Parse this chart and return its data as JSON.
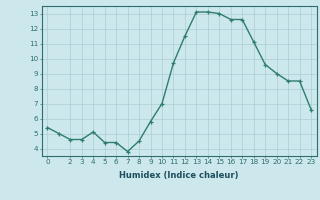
{
  "x": [
    0,
    1,
    2,
    3,
    4,
    5,
    6,
    7,
    8,
    9,
    10,
    11,
    12,
    13,
    14,
    15,
    16,
    17,
    18,
    19,
    20,
    21,
    22,
    23
  ],
  "y": [
    5.4,
    5.0,
    4.6,
    4.6,
    5.1,
    4.4,
    4.4,
    3.8,
    4.5,
    5.8,
    7.0,
    9.7,
    11.5,
    13.1,
    13.1,
    13.0,
    12.6,
    12.6,
    11.1,
    9.6,
    9.0,
    8.5,
    8.5,
    6.6
  ],
  "line_color": "#2e7d6e",
  "marker": "+",
  "marker_size": 3.5,
  "marker_linewidth": 0.9,
  "bg_color": "#cce8ec",
  "grid_color": "#aacdd4",
  "tick_color": "#2e6e6e",
  "xlabel": "Humidex (Indice chaleur)",
  "xlim": [
    -0.5,
    23.5
  ],
  "ylim": [
    3.5,
    13.5
  ],
  "yticks": [
    4,
    5,
    6,
    7,
    8,
    9,
    10,
    11,
    12,
    13
  ],
  "xticks": [
    0,
    2,
    3,
    4,
    5,
    6,
    7,
    8,
    9,
    10,
    11,
    12,
    13,
    14,
    15,
    16,
    17,
    18,
    19,
    20,
    21,
    22,
    23
  ],
  "font_color": "#1e4e5e",
  "linewidth": 1.0,
  "xlabel_fontsize": 6.0,
  "tick_fontsize": 5.2
}
